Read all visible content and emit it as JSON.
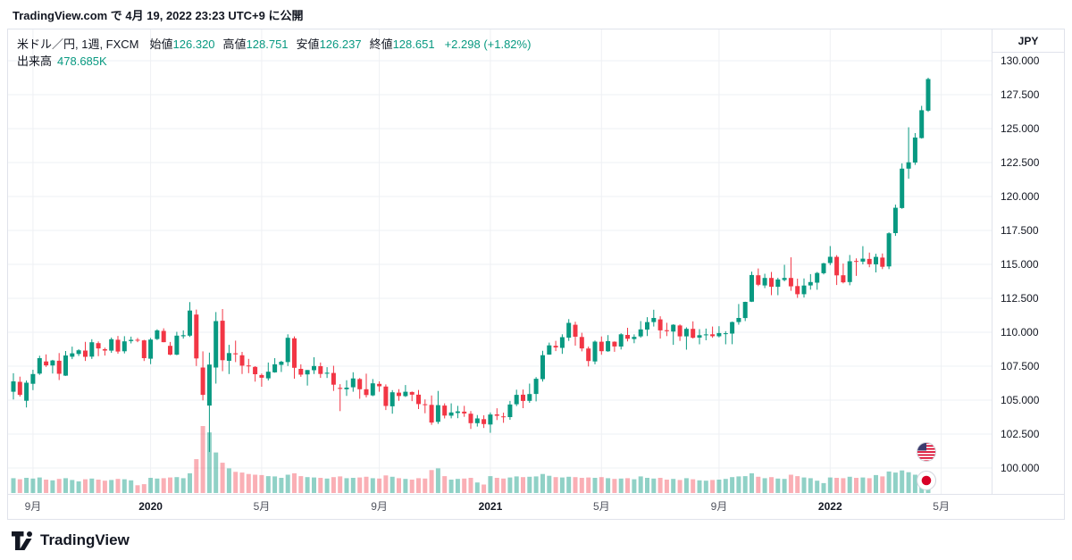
{
  "publish": {
    "text": "TradingView.com で 4月 19, 2022 23:23 UTC+9 に公開"
  },
  "legend": {
    "symbol_title": "米ドル／円, 1週, FXCM",
    "fields": [
      {
        "label": "始値",
        "value": "126.320"
      },
      {
        "label": "高値",
        "value": "128.751"
      },
      {
        "label": "安値",
        "value": "126.237"
      },
      {
        "label": "終値",
        "value": "128.651"
      }
    ],
    "change": "+2.298 (+1.82%)",
    "volume_label": "出来高",
    "volume_value": "478.685K"
  },
  "price_scale": {
    "currency": "JPY",
    "ticks": [
      130,
      127.5,
      125,
      122.5,
      120,
      117.5,
      115,
      112.5,
      110,
      107.5,
      105,
      102.5,
      100
    ]
  },
  "time_scale": {
    "ticks": [
      {
        "index": 3,
        "label": "9月",
        "major": false
      },
      {
        "index": 21,
        "label": "2020",
        "major": true
      },
      {
        "index": 38,
        "label": "5月",
        "major": false
      },
      {
        "index": 56,
        "label": "9月",
        "major": false
      },
      {
        "index": 73,
        "label": "2021",
        "major": true
      },
      {
        "index": 90,
        "label": "5月",
        "major": false
      },
      {
        "index": 108,
        "label": "9月",
        "major": false
      },
      {
        "index": 125,
        "label": "2022",
        "major": true
      },
      {
        "index": 142,
        "label": "5月",
        "major": false
      }
    ]
  },
  "icons": {
    "pair_base": "us-flag-icon",
    "pair_quote": "japan-flag-icon"
  },
  "footer": {
    "brand": "TradingView"
  },
  "colors": {
    "up": "#089981",
    "down": "#f23645",
    "volume_up": "rgba(8,153,129,0.45)",
    "volume_down": "rgba(242,54,69,0.40)",
    "grid": "#eef0f4",
    "text": "#131722",
    "muted": "#50535e",
    "border": "#e0e3eb",
    "accent": "#089981"
  },
  "chart_data": {
    "type": "candlestick",
    "pair": "USD/JPY (米ドル／円)",
    "interval": "1週",
    "source": "FXCM",
    "price_axis": {
      "unit": "JPY",
      "tick_step": 2.5,
      "tick_range": [
        100,
        130
      ]
    },
    "legend_position": "top-left",
    "grid": true,
    "current_bar": {
      "open": 126.32,
      "high": 128.751,
      "low": 126.237,
      "close": 128.651,
      "change": 2.298,
      "change_pct": 1.82,
      "volume_k": 478.685
    },
    "columns": [
      "week_start",
      "open",
      "high",
      "low",
      "close",
      "volume_k"
    ],
    "bars": [
      [
        "2019-08-11",
        105.62,
        106.98,
        105.05,
        106.38,
        420
      ],
      [
        "2019-08-18",
        106.35,
        106.73,
        105.26,
        105.39,
        390
      ],
      [
        "2019-08-25",
        104.95,
        106.45,
        104.46,
        106.28,
        430
      ],
      [
        "2019-09-01",
        106.2,
        107.24,
        105.74,
        106.92,
        410
      ],
      [
        "2019-09-08",
        106.95,
        108.27,
        106.86,
        108.09,
        440
      ],
      [
        "2019-09-15",
        107.85,
        108.37,
        107.45,
        107.56,
        380
      ],
      [
        "2019-09-22",
        107.55,
        107.97,
        106.96,
        107.92,
        360
      ],
      [
        "2019-09-29",
        107.9,
        108.47,
        106.48,
        106.94,
        400
      ],
      [
        "2019-10-06",
        106.8,
        108.62,
        106.78,
        108.29,
        420
      ],
      [
        "2019-10-13",
        108.2,
        108.94,
        108.02,
        108.45,
        370
      ],
      [
        "2019-10-20",
        108.4,
        108.75,
        108.25,
        108.67,
        330
      ],
      [
        "2019-10-27",
        108.65,
        109.29,
        107.89,
        108.19,
        390
      ],
      [
        "2019-11-03",
        108.2,
        109.49,
        108.03,
        109.26,
        410
      ],
      [
        "2019-11-10",
        109.2,
        109.32,
        108.24,
        108.81,
        380
      ],
      [
        "2019-11-17",
        108.75,
        108.86,
        108.28,
        108.65,
        350
      ],
      [
        "2019-11-24",
        108.65,
        109.61,
        108.49,
        109.49,
        370
      ],
      [
        "2019-12-01",
        109.45,
        109.73,
        108.42,
        108.58,
        400
      ],
      [
        "2019-12-08",
        108.6,
        109.71,
        108.44,
        109.33,
        390
      ],
      [
        "2019-12-15",
        109.35,
        109.68,
        109.18,
        109.44,
        360
      ],
      [
        "2019-12-22",
        109.45,
        109.58,
        109.27,
        109.43,
        220
      ],
      [
        "2019-12-29",
        109.4,
        109.45,
        107.88,
        108.09,
        250
      ],
      [
        "2020-01-05",
        108.05,
        109.58,
        107.65,
        109.46,
        430
      ],
      [
        "2020-01-12",
        109.5,
        110.22,
        109.43,
        110.14,
        410
      ],
      [
        "2020-01-19",
        110.1,
        110.29,
        109.26,
        109.27,
        420
      ],
      [
        "2020-01-26",
        109.0,
        109.28,
        108.31,
        108.35,
        440
      ],
      [
        "2020-02-02",
        108.35,
        110.03,
        108.31,
        109.75,
        450
      ],
      [
        "2020-02-09",
        109.7,
        110.14,
        109.53,
        109.78,
        420
      ],
      [
        "2020-02-16",
        109.75,
        112.22,
        109.65,
        111.6,
        560
      ],
      [
        "2020-02-23",
        111.3,
        111.67,
        107.51,
        108.07,
        960
      ],
      [
        "2020-03-01",
        107.4,
        108.59,
        104.98,
        105.39,
        1900
      ],
      [
        "2020-03-08",
        104.6,
        108.5,
        101.18,
        107.62,
        1720
      ],
      [
        "2020-03-15",
        107.4,
        111.49,
        106.22,
        110.82,
        1150
      ],
      [
        "2020-03-22",
        110.85,
        111.71,
        107.13,
        107.94,
        860
      ],
      [
        "2020-03-29",
        107.9,
        109.07,
        106.92,
        108.47,
        700
      ],
      [
        "2020-04-05",
        108.45,
        109.38,
        107.8,
        108.38,
        600
      ],
      [
        "2020-04-12",
        108.3,
        108.55,
        106.93,
        107.54,
        580
      ],
      [
        "2020-04-19",
        107.55,
        108.04,
        106.99,
        107.51,
        540
      ],
      [
        "2020-04-26",
        107.45,
        107.5,
        106.36,
        106.91,
        520
      ],
      [
        "2020-05-03",
        106.85,
        106.96,
        105.99,
        106.65,
        510
      ],
      [
        "2020-05-10",
        106.6,
        107.77,
        106.45,
        107.09,
        480
      ],
      [
        "2020-05-17",
        107.05,
        108.09,
        107.02,
        107.64,
        470
      ],
      [
        "2020-05-24",
        107.6,
        107.9,
        107.07,
        107.83,
        430
      ],
      [
        "2020-05-31",
        107.8,
        109.85,
        107.51,
        109.59,
        520
      ],
      [
        "2020-06-07",
        109.55,
        109.7,
        106.58,
        107.38,
        560
      ],
      [
        "2020-06-14",
        107.3,
        107.64,
        106.72,
        106.87,
        480
      ],
      [
        "2020-06-21",
        106.9,
        107.22,
        106.07,
        107.22,
        450
      ],
      [
        "2020-06-28",
        107.2,
        108.16,
        106.93,
        107.51,
        440
      ],
      [
        "2020-07-05",
        107.5,
        107.77,
        106.64,
        106.93,
        430
      ],
      [
        "2020-07-12",
        106.95,
        107.43,
        106.63,
        107.02,
        410
      ],
      [
        "2020-07-19",
        107.0,
        107.53,
        105.68,
        106.14,
        450
      ],
      [
        "2020-07-26",
        105.9,
        106.18,
        104.19,
        105.83,
        470
      ],
      [
        "2020-08-02",
        105.8,
        106.47,
        105.31,
        105.92,
        420
      ],
      [
        "2020-08-09",
        105.95,
        107.05,
        105.62,
        106.6,
        430
      ],
      [
        "2020-08-16",
        106.55,
        106.63,
        105.1,
        105.8,
        440
      ],
      [
        "2020-08-23",
        105.8,
        106.95,
        105.2,
        105.37,
        460
      ],
      [
        "2020-08-30",
        105.35,
        106.55,
        105.29,
        106.24,
        420
      ],
      [
        "2020-09-06",
        106.2,
        106.38,
        105.62,
        106.02,
        410
      ],
      [
        "2020-09-13",
        106.0,
        106.16,
        104.27,
        104.57,
        500
      ],
      [
        "2020-09-20",
        104.55,
        105.74,
        104.0,
        105.58,
        460
      ],
      [
        "2020-09-27",
        105.55,
        105.8,
        104.95,
        105.3,
        420
      ],
      [
        "2020-10-04",
        105.3,
        106.11,
        105.23,
        105.62,
        400
      ],
      [
        "2020-10-11",
        105.6,
        105.64,
        104.93,
        105.4,
        380
      ],
      [
        "2020-10-18",
        105.4,
        105.75,
        104.34,
        104.71,
        420
      ],
      [
        "2020-10-25",
        104.7,
        105.05,
        104.03,
        104.66,
        410
      ],
      [
        "2020-11-01",
        104.65,
        105.34,
        103.18,
        103.35,
        650
      ],
      [
        "2020-11-08",
        103.4,
        105.68,
        103.25,
        104.63,
        700
      ],
      [
        "2020-11-15",
        104.6,
        104.76,
        103.65,
        103.86,
        480
      ],
      [
        "2020-11-22",
        103.85,
        104.76,
        103.66,
        104.09,
        380
      ],
      [
        "2020-11-29",
        104.05,
        104.58,
        103.67,
        104.17,
        400
      ],
      [
        "2020-12-06",
        104.15,
        104.58,
        103.77,
        104.02,
        410
      ],
      [
        "2020-12-13",
        104.0,
        104.2,
        102.88,
        103.3,
        430
      ],
      [
        "2020-12-20",
        103.3,
        103.9,
        103.05,
        103.65,
        300
      ],
      [
        "2020-12-27",
        103.6,
        103.89,
        102.95,
        103.24,
        240
      ],
      [
        "2021-01-03",
        103.2,
        104.09,
        102.59,
        103.94,
        480
      ],
      [
        "2021-01-10",
        103.95,
        104.4,
        103.53,
        103.85,
        430
      ],
      [
        "2021-01-17",
        103.8,
        104.08,
        103.33,
        103.78,
        410
      ],
      [
        "2021-01-24",
        103.75,
        104.94,
        103.55,
        104.68,
        440
      ],
      [
        "2021-01-31",
        104.7,
        105.77,
        104.56,
        105.39,
        470
      ],
      [
        "2021-02-07",
        105.4,
        105.78,
        104.41,
        104.94,
        450
      ],
      [
        "2021-02-14",
        104.95,
        106.22,
        104.8,
        105.45,
        460
      ],
      [
        "2021-02-21",
        105.45,
        106.7,
        104.91,
        106.57,
        470
      ],
      [
        "2021-02-28",
        106.55,
        108.64,
        106.36,
        108.31,
        540
      ],
      [
        "2021-03-07",
        108.35,
        109.24,
        108.34,
        109.03,
        490
      ],
      [
        "2021-03-14",
        109.0,
        109.37,
        108.61,
        108.88,
        450
      ],
      [
        "2021-03-21",
        108.85,
        109.85,
        108.41,
        109.64,
        440
      ],
      [
        "2021-03-28",
        109.6,
        110.97,
        109.36,
        110.69,
        460
      ],
      [
        "2021-04-04",
        110.55,
        110.77,
        109.01,
        109.67,
        450
      ],
      [
        "2021-04-11",
        109.65,
        109.96,
        108.59,
        108.81,
        430
      ],
      [
        "2021-04-18",
        108.8,
        108.95,
        107.48,
        107.88,
        440
      ],
      [
        "2021-04-25",
        107.85,
        109.39,
        107.64,
        109.31,
        430
      ],
      [
        "2021-05-02",
        109.3,
        109.69,
        108.34,
        108.6,
        450
      ],
      [
        "2021-05-09",
        108.6,
        109.79,
        108.56,
        109.35,
        420
      ],
      [
        "2021-05-16",
        109.3,
        109.33,
        108.56,
        108.95,
        400
      ],
      [
        "2021-05-23",
        108.95,
        109.93,
        108.73,
        109.85,
        410
      ],
      [
        "2021-05-30",
        109.8,
        110.33,
        109.33,
        109.52,
        420
      ],
      [
        "2021-06-06",
        109.5,
        109.84,
        109.19,
        109.66,
        390
      ],
      [
        "2021-06-13",
        109.7,
        110.82,
        109.6,
        110.21,
        470
      ],
      [
        "2021-06-20",
        110.2,
        111.11,
        109.72,
        110.75,
        430
      ],
      [
        "2021-06-27",
        110.75,
        111.66,
        110.42,
        111.05,
        410
      ],
      [
        "2021-07-04",
        110.95,
        111.18,
        109.53,
        110.14,
        430
      ],
      [
        "2021-07-11",
        110.15,
        110.7,
        109.72,
        110.08,
        380
      ],
      [
        "2021-07-18",
        110.05,
        110.59,
        109.07,
        110.55,
        400
      ],
      [
        "2021-07-25",
        110.5,
        110.58,
        109.36,
        109.7,
        370
      ],
      [
        "2021-08-01",
        109.7,
        110.36,
        108.72,
        110.25,
        420
      ],
      [
        "2021-08-08",
        110.25,
        110.8,
        109.54,
        109.59,
        390
      ],
      [
        "2021-08-15",
        109.6,
        110.23,
        109.11,
        109.78,
        360
      ],
      [
        "2021-08-22",
        109.8,
        110.27,
        109.41,
        109.84,
        350
      ],
      [
        "2021-08-29",
        109.85,
        110.42,
        109.59,
        109.71,
        370
      ],
      [
        "2021-09-05",
        109.7,
        110.45,
        109.62,
        109.94,
        380
      ],
      [
        "2021-09-12",
        109.9,
        110.08,
        109.11,
        109.93,
        400
      ],
      [
        "2021-09-19",
        109.9,
        110.79,
        109.12,
        110.75,
        450
      ],
      [
        "2021-09-26",
        110.75,
        112.08,
        110.56,
        111.05,
        470
      ],
      [
        "2021-10-03",
        111.05,
        112.25,
        110.82,
        112.24,
        480
      ],
      [
        "2021-10-10",
        112.25,
        114.47,
        112.23,
        114.22,
        560
      ],
      [
        "2021-10-17",
        114.2,
        114.7,
        113.4,
        113.5,
        460
      ],
      [
        "2021-10-24",
        113.45,
        114.31,
        113.25,
        114.0,
        420
      ],
      [
        "2021-10-31",
        114.0,
        114.44,
        112.73,
        113.35,
        450
      ],
      [
        "2021-11-07",
        113.35,
        114.01,
        112.73,
        113.89,
        410
      ],
      [
        "2021-11-14",
        113.85,
        114.97,
        113.75,
        114.0,
        400
      ],
      [
        "2021-11-21",
        114.0,
        115.52,
        113.05,
        113.38,
        520
      ],
      [
        "2021-11-28",
        113.4,
        113.95,
        112.53,
        112.8,
        480
      ],
      [
        "2021-12-05",
        112.8,
        113.96,
        112.56,
        113.44,
        440
      ],
      [
        "2021-12-12",
        113.45,
        114.28,
        113.14,
        113.7,
        420
      ],
      [
        "2021-12-19",
        113.65,
        114.44,
        113.13,
        114.37,
        350
      ],
      [
        "2021-12-26",
        114.35,
        115.12,
        114.26,
        115.08,
        280
      ],
      [
        "2022-01-02",
        115.1,
        116.35,
        114.95,
        115.56,
        440
      ],
      [
        "2022-01-09",
        115.55,
        115.68,
        113.48,
        114.19,
        430
      ],
      [
        "2022-01-16",
        114.2,
        115.06,
        113.6,
        113.68,
        420
      ],
      [
        "2022-01-23",
        113.7,
        115.69,
        113.46,
        115.23,
        460
      ],
      [
        "2022-01-30",
        115.25,
        115.45,
        114.15,
        115.2,
        430
      ],
      [
        "2022-02-06",
        115.2,
        116.34,
        115.0,
        115.42,
        440
      ],
      [
        "2022-02-13",
        115.4,
        115.87,
        114.79,
        115.01,
        420
      ],
      [
        "2022-02-20",
        115.0,
        115.78,
        114.41,
        115.55,
        510
      ],
      [
        "2022-02-27",
        115.5,
        115.8,
        114.65,
        114.82,
        470
      ],
      [
        "2022-03-06",
        114.85,
        117.36,
        114.65,
        117.29,
        610
      ],
      [
        "2022-03-13",
        117.3,
        119.4,
        117.1,
        119.17,
        580
      ],
      [
        "2022-03-20",
        119.15,
        122.44,
        119.09,
        122.05,
        640
      ],
      [
        "2022-03-27",
        122.05,
        125.1,
        121.31,
        122.52,
        590
      ],
      [
        "2022-04-03",
        122.5,
        124.67,
        122.33,
        124.34,
        520
      ],
      [
        "2022-04-10",
        124.3,
        126.68,
        124.26,
        126.353,
        500
      ],
      [
        "2022-04-17",
        126.32,
        128.751,
        126.237,
        128.651,
        478.685
      ]
    ]
  }
}
